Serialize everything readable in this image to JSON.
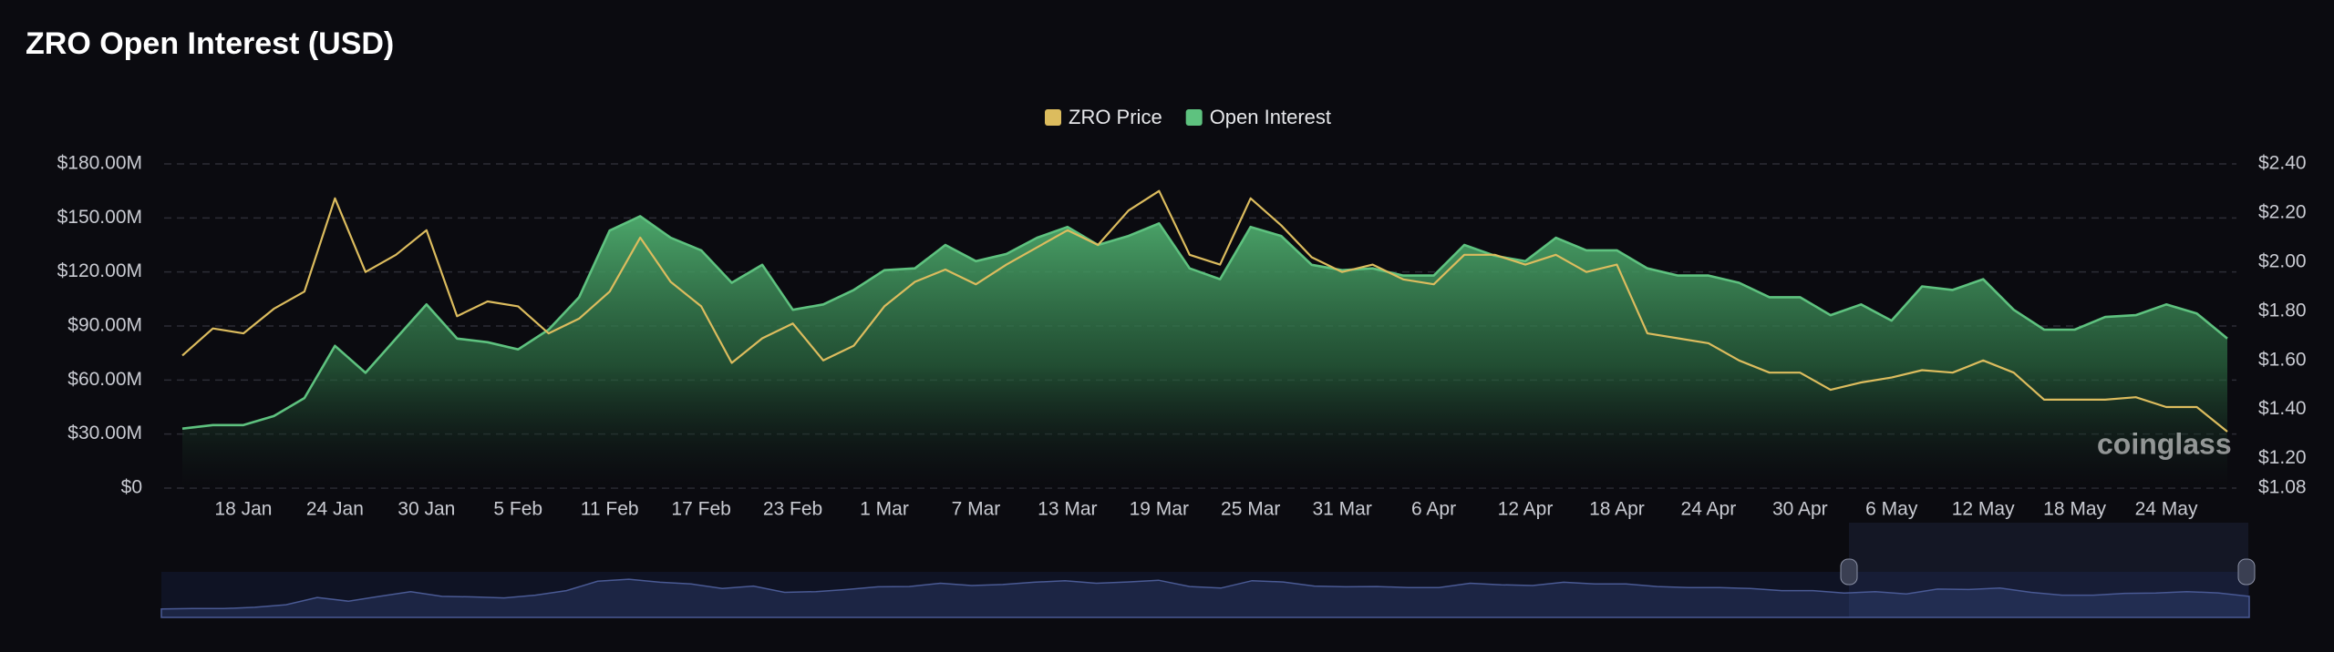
{
  "chart_data": {
    "type": "line",
    "title": "ZRO Open Interest (USD)",
    "watermark": "coinglass",
    "categories": [
      null,
      null,
      "18 Jan",
      null,
      null,
      "24 Jan",
      null,
      null,
      "30 Jan",
      null,
      null,
      "5 Feb",
      null,
      null,
      "11 Feb",
      null,
      null,
      "17 Feb",
      null,
      null,
      "23 Feb",
      null,
      null,
      "1 Mar",
      null,
      null,
      "7 Mar",
      null,
      null,
      "13 Mar",
      null,
      null,
      "19 Mar",
      null,
      null,
      "25 Mar",
      null,
      null,
      "31 Mar",
      null,
      null,
      "6 Apr",
      null,
      null,
      "12 Apr",
      null,
      null,
      "18 Apr",
      null,
      null,
      "24 Apr",
      null,
      null,
      "30 Apr",
      null,
      null,
      "6 May",
      null,
      null,
      "12 May",
      null,
      null,
      "18 May",
      null,
      null,
      "24 May",
      null,
      null
    ],
    "series": [
      {
        "name": "ZRO Price",
        "color": "#dcbc5e",
        "axis": "y2",
        "values": [
          1.62,
          1.73,
          1.71,
          1.81,
          1.88,
          2.26,
          1.96,
          2.03,
          2.13,
          1.78,
          1.84,
          1.82,
          1.71,
          1.77,
          1.88,
          2.1,
          1.92,
          1.82,
          1.59,
          1.69,
          1.75,
          1.6,
          1.66,
          1.82,
          1.92,
          1.97,
          1.91,
          1.99,
          2.06,
          2.13,
          2.07,
          2.21,
          2.29,
          2.03,
          1.99,
          2.26,
          2.15,
          2.02,
          1.96,
          1.99,
          1.93,
          1.91,
          2.03,
          2.03,
          1.99,
          2.03,
          1.96,
          1.99,
          1.71,
          1.69,
          1.67,
          1.6,
          1.55,
          1.55,
          1.48,
          1.51,
          1.53,
          1.56,
          1.55,
          1.6,
          1.55,
          1.44,
          1.44,
          1.44,
          1.45,
          1.41,
          1.41,
          1.31
        ]
      },
      {
        "name": "Open Interest",
        "color": "#5ec27f",
        "values": [
          33,
          35,
          35,
          40,
          50,
          79,
          64,
          83,
          102,
          83,
          81,
          77,
          88,
          106,
          143,
          151,
          139,
          132,
          114,
          124,
          99,
          102,
          110,
          121,
          122,
          135,
          126,
          130,
          139,
          145,
          135,
          140,
          147,
          122,
          116,
          145,
          140,
          124,
          121,
          122,
          118,
          118,
          135,
          129,
          126,
          139,
          132,
          132,
          122,
          118,
          118,
          114,
          106,
          106,
          96,
          102,
          93,
          112,
          110,
          116,
          99,
          88,
          88,
          95,
          96,
          102,
          97,
          83
        ]
      }
    ],
    "ylim": [
      0,
      180
    ],
    "yticks": [
      {
        "value": 0,
        "label": "$0"
      },
      {
        "value": 30,
        "label": "$30.00M"
      },
      {
        "value": 60,
        "label": "$60.00M"
      },
      {
        "value": 90,
        "label": "$90.00M"
      },
      {
        "value": 120,
        "label": "$120.00M"
      },
      {
        "value": 150,
        "label": "$150.00M"
      },
      {
        "value": 180,
        "label": "$180.00M"
      }
    ],
    "y2lim": [
      1.08,
      2.4
    ],
    "y2ticks": [
      {
        "value": 1.08,
        "label": "$1.08"
      },
      {
        "value": 1.2,
        "label": "$1.20"
      },
      {
        "value": 1.4,
        "label": "$1.40"
      },
      {
        "value": 1.6,
        "label": "$1.60"
      },
      {
        "value": 1.8,
        "label": "$1.80"
      },
      {
        "value": 2.0,
        "label": "$2.00"
      },
      {
        "value": 2.2,
        "label": "$2.20"
      },
      {
        "value": 2.4,
        "label": "$2.40"
      }
    ],
    "grid": true,
    "legend": "top"
  }
}
